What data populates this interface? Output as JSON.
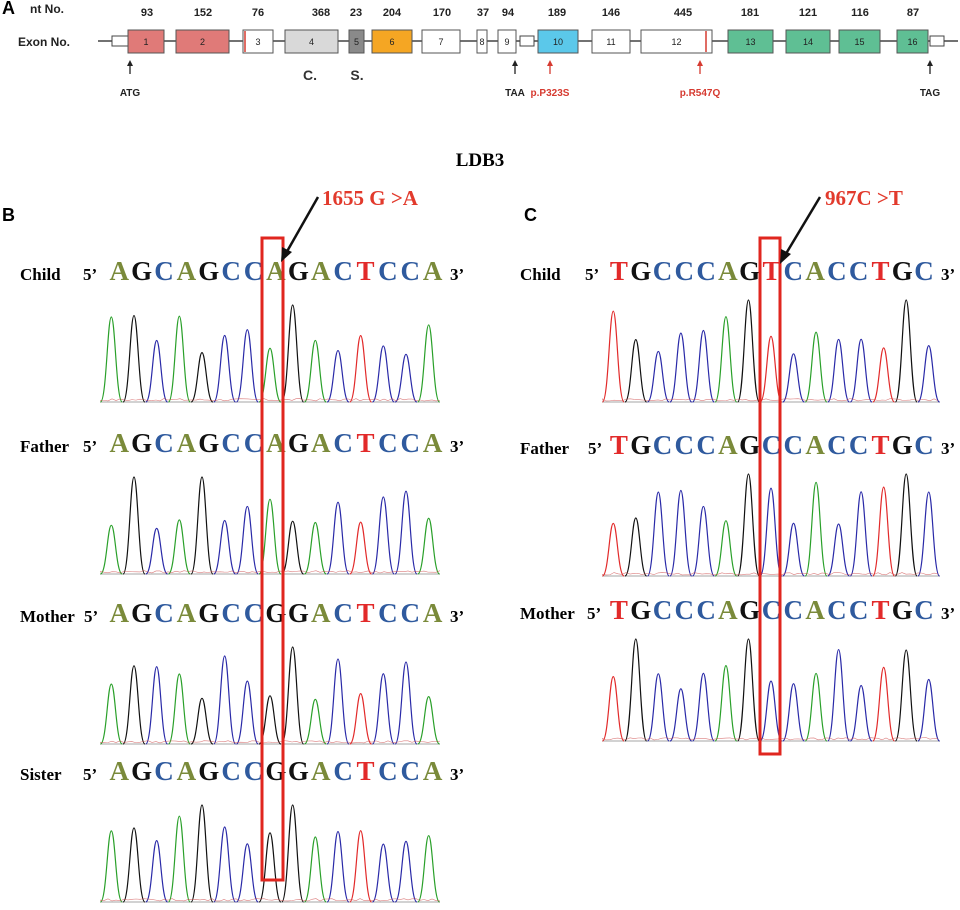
{
  "panels": {
    "a": "A",
    "b": "B",
    "c": "C"
  },
  "gene_map": {
    "nt_label": "nt No.",
    "exon_label": "Exon No.",
    "nt_values": [
      "93",
      "152",
      "76",
      "368",
      "23",
      "204",
      "170",
      "37",
      "94",
      "189",
      "146",
      "445",
      "181",
      "121",
      "116",
      "87"
    ],
    "exons": [
      {
        "num": "1",
        "color": "#e07a78"
      },
      {
        "num": "2",
        "color": "#e07a78"
      },
      {
        "num": "3",
        "color": "#ffffff"
      },
      {
        "num": "4",
        "color": "#d9d9d9"
      },
      {
        "num": "5",
        "color": "#8a8a8a"
      },
      {
        "num": "6",
        "color": "#f5a623"
      },
      {
        "num": "7",
        "color": "#ffffff"
      },
      {
        "num": "8",
        "color": "#ffffff"
      },
      {
        "num": "9",
        "color": "#ffffff"
      },
      {
        "num": "10",
        "color": "#5bc8ea"
      },
      {
        "num": "11",
        "color": "#ffffff"
      },
      {
        "num": "12",
        "color": "#ffffff"
      },
      {
        "num": "13",
        "color": "#5fbf94"
      },
      {
        "num": "14",
        "color": "#5fbf94"
      },
      {
        "num": "15",
        "color": "#5fbf94"
      },
      {
        "num": "16",
        "color": "#5fbf94"
      }
    ],
    "region_labels": [
      "C.",
      "S."
    ],
    "markers": [
      {
        "label": "ATG",
        "color": "#222222"
      },
      {
        "label": "TAA",
        "color": "#222222"
      },
      {
        "label": "p.P323S",
        "color": "#d63a30"
      },
      {
        "label": "p.R547Q",
        "color": "#d63a30"
      },
      {
        "label": "TAG",
        "color": "#222222"
      }
    ]
  },
  "gene_name": "LDB3",
  "panel_b": {
    "mutation": "1655 G >A",
    "prime5": "5’",
    "prime3": "3’",
    "rows": [
      {
        "label": "Child",
        "sequence": "AGCAGCCAGACTCCA"
      },
      {
        "label": "Father",
        "sequence": "AGCAGCCAGACTCCA"
      },
      {
        "label": "Mother",
        "sequence": "AGCAGCCGGACTCCA"
      },
      {
        "label": "Sister",
        "sequence": "AGCAGCCGGACTCCA"
      }
    ]
  },
  "panel_c": {
    "mutation": "967C >T",
    "prime5": "5’",
    "prime3": "3’",
    "rows": [
      {
        "label": "Child",
        "sequence": "TGCCCAGTCACCTGC"
      },
      {
        "label": "Father",
        "sequence": "TGCCCAGCCACCTGC"
      },
      {
        "label": "Mother",
        "sequence": "TGCCCAGCCACCTGC"
      }
    ]
  },
  "base_colors": {
    "A": "#7a8a3a",
    "G": "#111111",
    "C": "#2f5a9e",
    "T": "#e22a2a"
  },
  "highlight_color": "#e0261f"
}
